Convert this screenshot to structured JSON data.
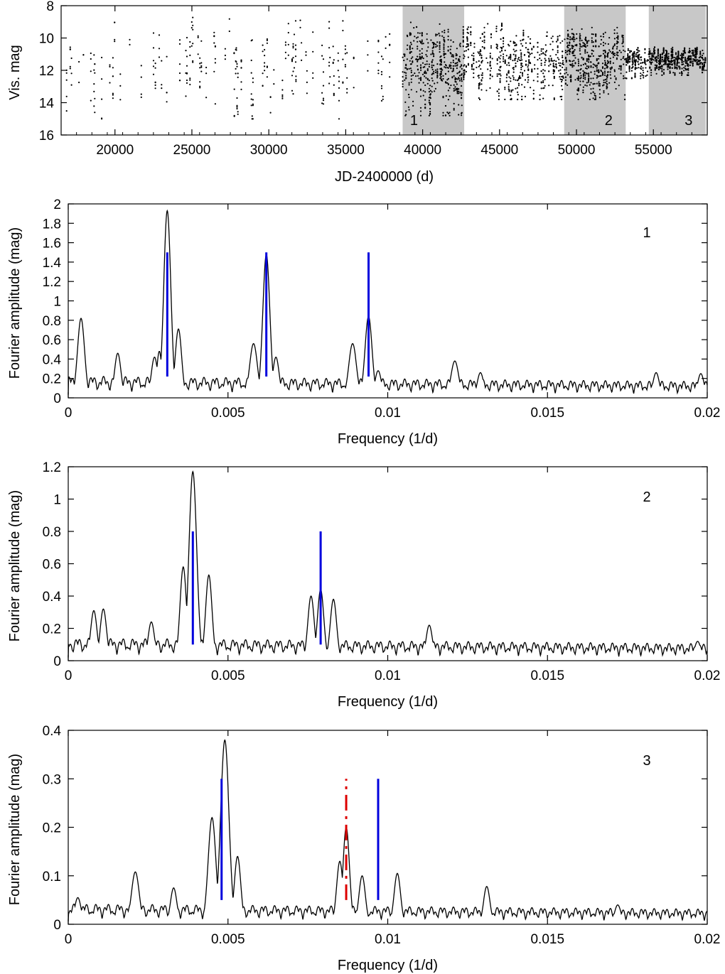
{
  "colors": {
    "shade": "#c8c8c8",
    "data": "#000000",
    "blue_marker": "#0000dd",
    "red_marker": "#dd0000"
  },
  "chart_data": [
    {
      "id": "lightcurve",
      "type": "scatter",
      "title": "",
      "xlabel": "JD-2400000 (d)",
      "ylabel": "Vis. mag",
      "xlim": [
        16500,
        58500
      ],
      "ylim": [
        16,
        8
      ],
      "y_inverted": true,
      "xticks": [
        20000,
        25000,
        30000,
        35000,
        40000,
        45000,
        50000,
        55000
      ],
      "yticks": [
        8,
        10,
        12,
        14,
        16
      ],
      "shaded_regions": [
        {
          "label": "1",
          "x": [
            38700,
            42700
          ]
        },
        {
          "label": "2",
          "x": [
            49200,
            53200
          ]
        },
        {
          "label": "3",
          "x": [
            54700,
            58400
          ]
        }
      ],
      "segments": [
        {
          "x": [
            16500,
            38700
          ],
          "mag_range": [
            8.5,
            15.0
          ],
          "density": 0.12
        },
        {
          "x": [
            38700,
            42700
          ],
          "mag_range": [
            9.0,
            14.8
          ],
          "density": 0.55
        },
        {
          "x": [
            42700,
            49200
          ],
          "mag_range": [
            9.0,
            13.8
          ],
          "density": 0.45
        },
        {
          "x": [
            49200,
            53200
          ],
          "mag_range": [
            9.2,
            13.8
          ],
          "density": 0.6
        },
        {
          "x": [
            53200,
            54700
          ],
          "mag_range": [
            10.5,
            12.5
          ],
          "density": 0.7
        },
        {
          "x": [
            54700,
            58400
          ],
          "mag_range": [
            10.5,
            12.3
          ],
          "density": 0.95
        }
      ]
    },
    {
      "id": "spectrum-1",
      "type": "line",
      "panel_label": "1",
      "xlabel": "Frequency (1/d)",
      "ylabel": "Fourier amplitude (mag)",
      "xlim": [
        0,
        0.02
      ],
      "ylim": [
        0,
        2
      ],
      "xticks": [
        0,
        0.005,
        0.01,
        0.015,
        0.02
      ],
      "yticks": [
        0,
        0.2,
        0.4,
        0.6,
        0.8,
        1,
        1.2,
        1.4,
        1.6,
        1.8,
        2
      ],
      "baseline": 0.16,
      "peaks": [
        {
          "f": 0.0004,
          "a": 0.82,
          "w": 0.00011
        },
        {
          "f": 0.00155,
          "a": 0.46,
          "w": 0.0001
        },
        {
          "f": 0.0027,
          "a": 0.42,
          "w": 0.0001
        },
        {
          "f": 0.00285,
          "a": 0.48,
          "w": 8e-05
        },
        {
          "f": 0.0031,
          "a": 1.93,
          "w": 0.00011
        },
        {
          "f": 0.00345,
          "a": 0.71,
          "w": 0.0001
        },
        {
          "f": 0.0058,
          "a": 0.56,
          "w": 0.00012
        },
        {
          "f": 0.0062,
          "a": 1.48,
          "w": 0.00011
        },
        {
          "f": 0.0065,
          "a": 0.42,
          "w": 0.0001
        },
        {
          "f": 0.0089,
          "a": 0.56,
          "w": 0.00012
        },
        {
          "f": 0.0094,
          "a": 0.84,
          "w": 0.00011
        },
        {
          "f": 0.0097,
          "a": 0.28,
          "w": 0.0001
        },
        {
          "f": 0.0121,
          "a": 0.38,
          "w": 0.00012
        },
        {
          "f": 0.0129,
          "a": 0.26,
          "w": 0.0001
        },
        {
          "f": 0.0184,
          "a": 0.26,
          "w": 0.0001
        },
        {
          "f": 0.0198,
          "a": 0.25,
          "w": 0.0001
        }
      ],
      "markers": [
        {
          "f": 0.0031,
          "y0": 0.22,
          "y1": 1.5,
          "style": "blue"
        },
        {
          "f": 0.0062,
          "y0": 0.22,
          "y1": 1.5,
          "style": "blue"
        },
        {
          "f": 0.0094,
          "y0": 0.22,
          "y1": 1.5,
          "style": "blue"
        }
      ]
    },
    {
      "id": "spectrum-2",
      "type": "line",
      "panel_label": "2",
      "xlabel": "Frequency (1/d)",
      "ylabel": "Fourier amplitude (mag)",
      "xlim": [
        0,
        0.02
      ],
      "ylim": [
        0,
        1.2
      ],
      "xticks": [
        0,
        0.005,
        0.01,
        0.015,
        0.02
      ],
      "yticks": [
        0,
        0.2,
        0.4,
        0.6,
        0.8,
        1,
        1.2
      ],
      "baseline": 0.1,
      "peaks": [
        {
          "f": 0.0008,
          "a": 0.31,
          "w": 0.0001
        },
        {
          "f": 0.0011,
          "a": 0.32,
          "w": 0.0001
        },
        {
          "f": 0.0026,
          "a": 0.24,
          "w": 0.0001
        },
        {
          "f": 0.0036,
          "a": 0.58,
          "w": 0.0001
        },
        {
          "f": 0.0039,
          "a": 1.17,
          "w": 0.00012
        },
        {
          "f": 0.0044,
          "a": 0.53,
          "w": 0.0001
        },
        {
          "f": 0.0076,
          "a": 0.4,
          "w": 0.0001
        },
        {
          "f": 0.0079,
          "a": 0.44,
          "w": 0.0001
        },
        {
          "f": 0.0083,
          "a": 0.38,
          "w": 0.0001
        },
        {
          "f": 0.0113,
          "a": 0.22,
          "w": 0.0001
        },
        {
          "f": 0.0197,
          "a": 0.12,
          "w": 0.0001
        }
      ],
      "markers": [
        {
          "f": 0.0039,
          "y0": 0.1,
          "y1": 0.8,
          "style": "blue"
        },
        {
          "f": 0.0079,
          "y0": 0.1,
          "y1": 0.8,
          "style": "blue"
        }
      ]
    },
    {
      "id": "spectrum-3",
      "type": "line",
      "panel_label": "3",
      "xlabel": "Frequency (1/d)",
      "ylabel": "Fourier amplitude (mag)",
      "xlim": [
        0,
        0.02
      ],
      "ylim": [
        0,
        0.4
      ],
      "xticks": [
        0,
        0.005,
        0.01,
        0.015,
        0.02
      ],
      "yticks": [
        0,
        0.1,
        0.2,
        0.3,
        0.4
      ],
      "baseline": 0.03,
      "peaks": [
        {
          "f": 0.0003,
          "a": 0.055,
          "w": 0.0001
        },
        {
          "f": 0.0021,
          "a": 0.108,
          "w": 0.00012
        },
        {
          "f": 0.0033,
          "a": 0.075,
          "w": 0.0001
        },
        {
          "f": 0.0045,
          "a": 0.22,
          "w": 0.00012
        },
        {
          "f": 0.0049,
          "a": 0.38,
          "w": 0.00013
        },
        {
          "f": 0.0053,
          "a": 0.14,
          "w": 0.0001
        },
        {
          "f": 0.0085,
          "a": 0.13,
          "w": 0.0001
        },
        {
          "f": 0.0087,
          "a": 0.2,
          "w": 0.0001
        },
        {
          "f": 0.0092,
          "a": 0.1,
          "w": 0.0001
        },
        {
          "f": 0.0103,
          "a": 0.105,
          "w": 0.0001
        },
        {
          "f": 0.0131,
          "a": 0.078,
          "w": 0.0001
        },
        {
          "f": 0.0172,
          "a": 0.04,
          "w": 0.0001
        }
      ],
      "markers": [
        {
          "f": 0.0048,
          "y0": 0.05,
          "y1": 0.3,
          "style": "blue"
        },
        {
          "f": 0.0087,
          "y0": 0.05,
          "y1": 0.3,
          "style": "red-dashdot"
        },
        {
          "f": 0.0097,
          "y0": 0.05,
          "y1": 0.3,
          "style": "blue"
        }
      ]
    }
  ]
}
